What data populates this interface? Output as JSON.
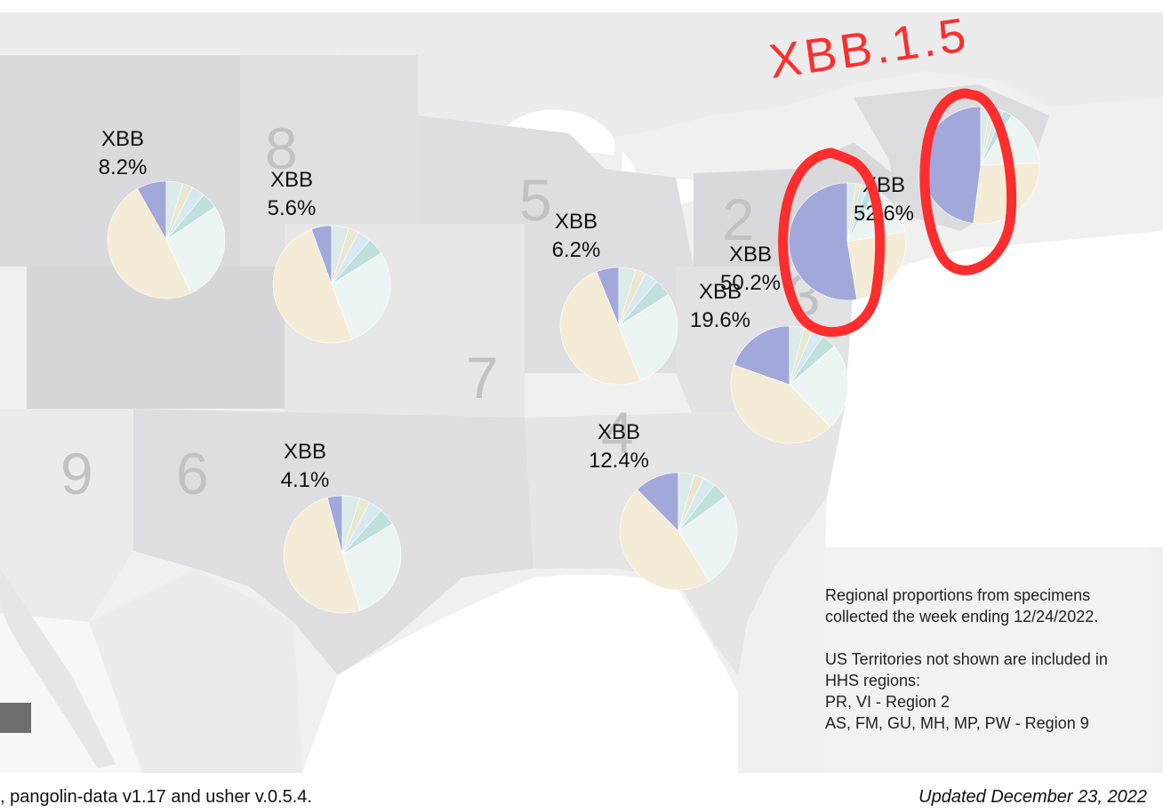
{
  "hhs_region_numbers": [
    {
      "id": "8",
      "label": "8"
    },
    {
      "id": "5",
      "label": "5"
    },
    {
      "id": "2",
      "label": "2"
    },
    {
      "id": "7",
      "label": "7"
    },
    {
      "id": "9",
      "label": "9"
    },
    {
      "id": "6",
      "label": "6"
    },
    {
      "id": "4",
      "label": "4"
    },
    {
      "id": "3",
      "label": "3"
    }
  ],
  "region_pies": [
    {
      "id": "r8-west",
      "lineage": "XBB",
      "percent_label": "8.2%",
      "xbb_fraction": 0.082
    },
    {
      "id": "r8",
      "lineage": "XBB",
      "percent_label": "5.6%",
      "xbb_fraction": 0.056
    },
    {
      "id": "r5",
      "lineage": "XBB",
      "percent_label": "6.2%",
      "xbb_fraction": 0.062
    },
    {
      "id": "r2",
      "lineage": "XBB",
      "percent_label": "52.6%",
      "xbb_fraction": 0.526
    },
    {
      "id": "r1",
      "lineage": "",
      "percent_label": "",
      "xbb_fraction": 0.48
    },
    {
      "id": "r3a",
      "lineage": "XBB",
      "percent_label": "50.2%",
      "xbb_fraction": 0.502
    },
    {
      "id": "r3",
      "lineage": "XBB",
      "percent_label": "19.6%",
      "xbb_fraction": 0.196
    },
    {
      "id": "r6",
      "lineage": "XBB",
      "percent_label": "4.1%",
      "xbb_fraction": 0.041
    },
    {
      "id": "r4",
      "lineage": "XBB",
      "percent_label": "12.4%",
      "xbb_fraction": 0.124
    }
  ],
  "handwritten_annotation": "XBB.1.5",
  "note": {
    "line1": "Regional proportions from specimens",
    "line2": "collected the week ending 12/24/2022.",
    "line3": "US Territories not shown are included in",
    "line4": "HHS regions:",
    "line5": "PR, VI - Region 2",
    "line6": "AS, FM, GU, MH, MP, PW - Region 9"
  },
  "footer": {
    "left": ", pangolin-data v1.17 and usher v.0.5.4.",
    "right": "Updated December 23, 2022"
  },
  "colors": {
    "xbb": "#a3a8db",
    "annotation_red": "#ff2d2d",
    "slice_palette": [
      "#c7e1e4",
      "#c8dcda",
      "#dcebea",
      "#e9e7cd",
      "#d6e9f1",
      "#bfe0dd",
      "#ecf4f3",
      "#f4ecd6"
    ]
  }
}
